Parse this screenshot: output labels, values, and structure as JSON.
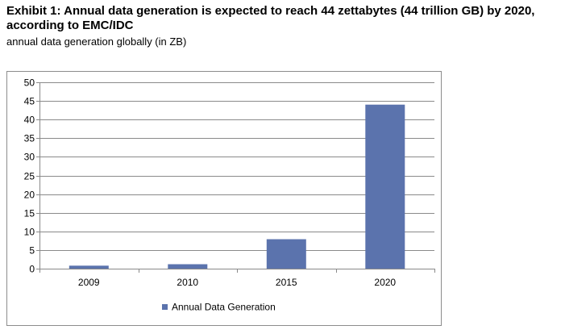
{
  "title": "Exhibit 1: Annual data generation is expected to reach 44 zettabytes (44 trillion GB) by 2020, according to EMC/IDC",
  "subtitle": "annual data generation globally (in ZB)",
  "chart_data": {
    "type": "bar",
    "title": "",
    "xlabel": "",
    "ylabel": "",
    "categories": [
      "2009",
      "2010",
      "2015",
      "2020"
    ],
    "series": [
      {
        "name": "Annual Data Generation",
        "values": [
          0.8,
          1.2,
          7.9,
          44
        ],
        "color": "#5b73ad"
      }
    ],
    "ylim": [
      0,
      50
    ],
    "yticks": [
      0,
      5,
      10,
      15,
      20,
      25,
      30,
      35,
      40,
      45,
      50
    ],
    "grid": true,
    "legend": "bottom"
  }
}
